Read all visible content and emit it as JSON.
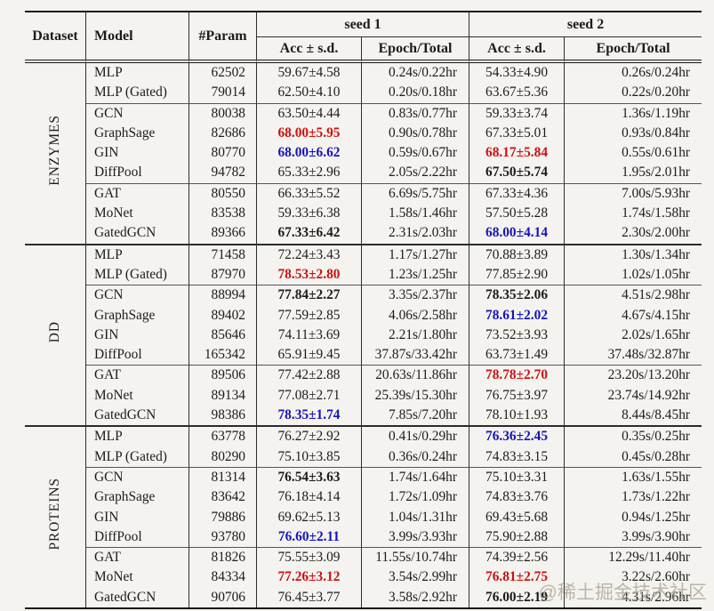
{
  "colors": {
    "best_red": "#cc1111",
    "second_blue": "#1414bb",
    "text": "#1b1b1b",
    "background": "#f5f3ef"
  },
  "watermark": {
    "text": "@稀土掘金技术社区"
  },
  "table": {
    "header": {
      "dataset": "Dataset",
      "model": "Model",
      "param": "#Param",
      "seed1": "seed 1",
      "seed2": "seed 2",
      "acc": "Acc ± s.d.",
      "epoch": "Epoch/Total"
    },
    "groups": [
      {
        "dataset": "ENZYMES",
        "rows": [
          {
            "model": "MLP",
            "param": "62502",
            "s1": [
              "59.67±4.58",
              "plain"
            ],
            "t1": "0.24s/0.22hr",
            "s2": [
              "54.33±4.90",
              "plain"
            ],
            "t2": "0.26s/0.24hr"
          },
          {
            "model": "MLP (Gated)",
            "param": "79014",
            "s1": [
              "62.50±4.10",
              "plain"
            ],
            "t1": "0.20s/0.18hr",
            "s2": [
              "63.67±5.36",
              "plain"
            ],
            "t2": "0.22s/0.20hr"
          },
          {
            "model": "GCN",
            "param": "80038",
            "s1": [
              "63.50±4.44",
              "plain"
            ],
            "t1": "0.83s/0.77hr",
            "s2": [
              "59.33±3.74",
              "plain"
            ],
            "t2": "1.36s/1.19hr"
          },
          {
            "model": "GraphSage",
            "param": "82686",
            "s1": [
              "68.00±5.95",
              "red"
            ],
            "t1": "0.90s/0.78hr",
            "s2": [
              "67.33±5.01",
              "plain"
            ],
            "t2": "0.93s/0.84hr"
          },
          {
            "model": "GIN",
            "param": "80770",
            "s1": [
              "68.00±6.62",
              "blue"
            ],
            "t1": "0.59s/0.67hr",
            "s2": [
              "68.17±5.84",
              "red"
            ],
            "t2": "0.55s/0.61hr"
          },
          {
            "model": "DiffPool",
            "param": "94782",
            "s1": [
              "65.33±2.96",
              "plain"
            ],
            "t1": "2.05s/2.22hr",
            "s2": [
              "67.50±5.74",
              "bold"
            ],
            "t2": "1.95s/2.01hr"
          },
          {
            "model": "GAT",
            "param": "80550",
            "s1": [
              "66.33±5.52",
              "plain"
            ],
            "t1": "6.69s/5.75hr",
            "s2": [
              "67.33±4.36",
              "plain"
            ],
            "t2": "7.00s/5.93hr"
          },
          {
            "model": "MoNet",
            "param": "83538",
            "s1": [
              "59.33±6.38",
              "plain"
            ],
            "t1": "1.58s/1.46hr",
            "s2": [
              "57.50±5.28",
              "plain"
            ],
            "t2": "1.74s/1.58hr"
          },
          {
            "model": "GatedGCN",
            "param": "89366",
            "s1": [
              "67.33±6.42",
              "bold"
            ],
            "t1": "2.31s/2.03hr",
            "s2": [
              "68.00±4.14",
              "blue"
            ],
            "t2": "2.30s/2.00hr"
          }
        ]
      },
      {
        "dataset": "DD",
        "rows": [
          {
            "model": "MLP",
            "param": "71458",
            "s1": [
              "72.24±3.43",
              "plain"
            ],
            "t1": "1.17s/1.27hr",
            "s2": [
              "70.88±3.89",
              "plain"
            ],
            "t2": "1.30s/1.34hr"
          },
          {
            "model": "MLP (Gated)",
            "param": "87970",
            "s1": [
              "78.53±2.80",
              "red"
            ],
            "t1": "1.23s/1.25hr",
            "s2": [
              "77.85±2.90",
              "plain"
            ],
            "t2": "1.02s/1.05hr"
          },
          {
            "model": "GCN",
            "param": "88994",
            "s1": [
              "77.84±2.27",
              "bold"
            ],
            "t1": "3.35s/2.37hr",
            "s2": [
              "78.35±2.06",
              "bold"
            ],
            "t2": "4.51s/2.98hr"
          },
          {
            "model": "GraphSage",
            "param": "89402",
            "s1": [
              "77.59±2.85",
              "plain"
            ],
            "t1": "4.06s/2.58hr",
            "s2": [
              "78.61±2.02",
              "blue"
            ],
            "t2": "4.67s/4.15hr"
          },
          {
            "model": "GIN",
            "param": "85646",
            "s1": [
              "74.11±3.69",
              "plain"
            ],
            "t1": "2.21s/1.80hr",
            "s2": [
              "73.52±3.93",
              "plain"
            ],
            "t2": "2.02s/1.65hr"
          },
          {
            "model": "DiffPool",
            "param": "165342",
            "s1": [
              "65.91±9.45",
              "plain"
            ],
            "t1": "37.87s/33.42hr",
            "s2": [
              "63.73±1.49",
              "plain"
            ],
            "t2": "37.48s/32.87hr"
          },
          {
            "model": "GAT",
            "param": "89506",
            "s1": [
              "77.42±2.88",
              "plain"
            ],
            "t1": "20.63s/11.86hr",
            "s2": [
              "78.78±2.70",
              "red"
            ],
            "t2": "23.20s/13.20hr"
          },
          {
            "model": "MoNet",
            "param": "89134",
            "s1": [
              "77.08±2.71",
              "plain"
            ],
            "t1": "25.39s/15.30hr",
            "s2": [
              "76.75±3.97",
              "plain"
            ],
            "t2": "23.74s/14.92hr"
          },
          {
            "model": "GatedGCN",
            "param": "98386",
            "s1": [
              "78.35±1.74",
              "blue"
            ],
            "t1": "7.85s/7.20hr",
            "s2": [
              "78.10±1.93",
              "plain"
            ],
            "t2": "8.44s/8.45hr"
          }
        ]
      },
      {
        "dataset": "PROTEINS",
        "rows": [
          {
            "model": "MLP",
            "param": "63778",
            "s1": [
              "76.27±2.92",
              "plain"
            ],
            "t1": "0.41s/0.29hr",
            "s2": [
              "76.36±2.45",
              "blue"
            ],
            "t2": "0.35s/0.25hr"
          },
          {
            "model": "MLP (Gated)",
            "param": "80290",
            "s1": [
              "75.10±3.85",
              "plain"
            ],
            "t1": "0.36s/0.24hr",
            "s2": [
              "74.83±3.15",
              "plain"
            ],
            "t2": "0.45s/0.28hr"
          },
          {
            "model": "GCN",
            "param": "81314",
            "s1": [
              "76.54±3.63",
              "bold"
            ],
            "t1": "1.74s/1.64hr",
            "s2": [
              "75.10±3.31",
              "plain"
            ],
            "t2": "1.63s/1.55hr"
          },
          {
            "model": "GraphSage",
            "param": "83642",
            "s1": [
              "76.18±4.14",
              "plain"
            ],
            "t1": "1.72s/1.09hr",
            "s2": [
              "74.83±3.76",
              "plain"
            ],
            "t2": "1.73s/1.22hr"
          },
          {
            "model": "GIN",
            "param": "79886",
            "s1": [
              "69.62±5.13",
              "plain"
            ],
            "t1": "1.04s/1.31hr",
            "s2": [
              "69.43±5.68",
              "plain"
            ],
            "t2": "0.94s/1.25hr"
          },
          {
            "model": "DiffPool",
            "param": "93780",
            "s1": [
              "76.60±2.11",
              "blue"
            ],
            "t1": "3.99s/3.93hr",
            "s2": [
              "75.90±2.88",
              "plain"
            ],
            "t2": "3.99s/3.90hr"
          },
          {
            "model": "GAT",
            "param": "81826",
            "s1": [
              "75.55±3.09",
              "plain"
            ],
            "t1": "11.55s/10.74hr",
            "s2": [
              "74.39±2.56",
              "plain"
            ],
            "t2": "12.29s/11.40hr"
          },
          {
            "model": "MoNet",
            "param": "84334",
            "s1": [
              "77.26±3.12",
              "red"
            ],
            "t1": "3.54s/2.99hr",
            "s2": [
              "76.81±2.75",
              "red"
            ],
            "t2": "3.22s/2.60hr"
          },
          {
            "model": "GatedGCN",
            "param": "90706",
            "s1": [
              "76.45±3.77",
              "plain"
            ],
            "t1": "3.58s/2.92hr",
            "s2": [
              "76.00±2.19",
              "bold"
            ],
            "t2": "4.31s/2.96hr"
          }
        ]
      }
    ]
  }
}
